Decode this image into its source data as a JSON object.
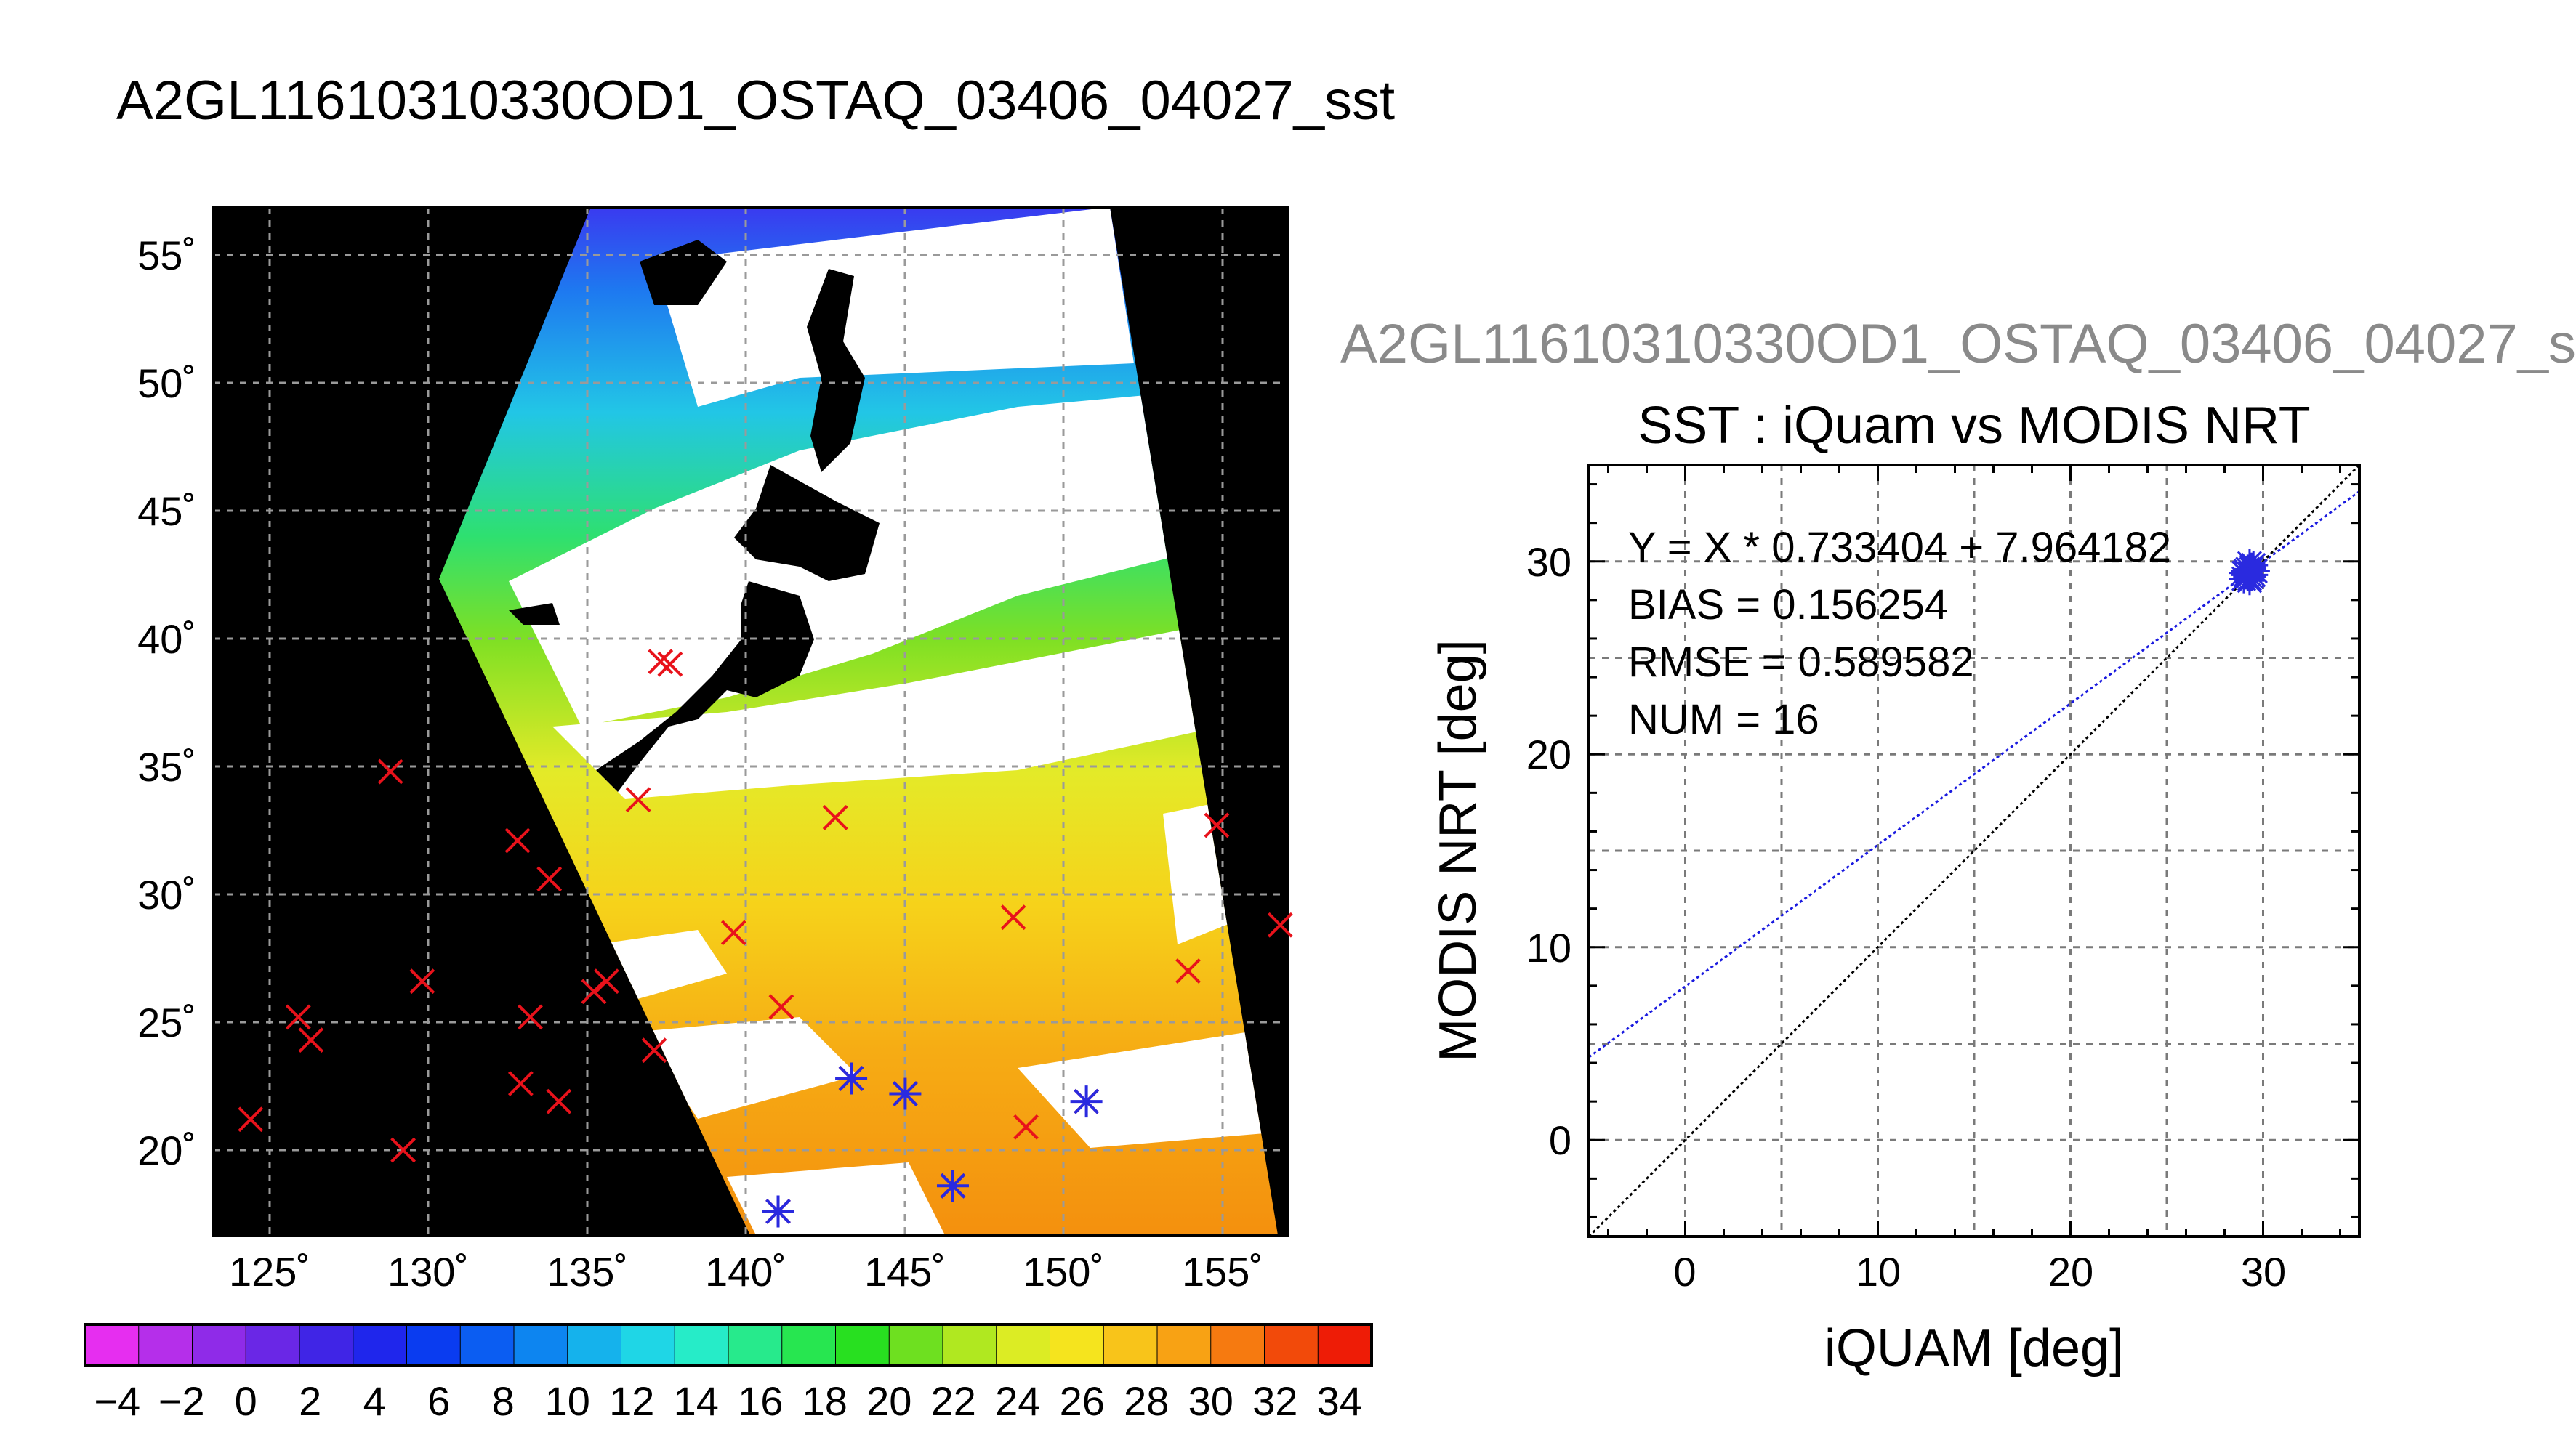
{
  "main_title": "A2GL11610310330OD1_OSTAQ_03406_04027_sst",
  "side_title": "A2GL11610310330OD1_OSTAQ_03406_04027_s",
  "map": {
    "lat_ticks": [
      "55˚",
      "50˚",
      "45˚",
      "40˚",
      "35˚",
      "30˚",
      "25˚",
      "20˚"
    ],
    "lon_ticks": [
      "125˚",
      "130˚",
      "135˚",
      "140˚",
      "145˚",
      "150˚",
      "155˚"
    ],
    "land_color": "#000000",
    "marker_color": "#e8121b",
    "match_color": "#2a2adf"
  },
  "colorbar": {
    "tick_labels": [
      "−4",
      "−2",
      "0",
      "2",
      "4",
      "6",
      "8",
      "10",
      "12",
      "14",
      "16",
      "18",
      "20",
      "22",
      "24",
      "26",
      "28",
      "30",
      "32",
      "34"
    ],
    "colors": [
      "#e62ef0",
      "#b52fea",
      "#8f2be8",
      "#6a27e6",
      "#4025e6",
      "#1f26ec",
      "#0a3cf0",
      "#0b5df2",
      "#0d85f0",
      "#15b2ec",
      "#1fd6e6",
      "#26ecc8",
      "#27ea8c",
      "#27e650",
      "#28e020",
      "#6ee020",
      "#b0e820",
      "#dcec24",
      "#f5e41e",
      "#f8c41a",
      "#f8a214",
      "#f67a10",
      "#f24a0a",
      "#ee1c06"
    ]
  },
  "scatter": {
    "title": "SST : iQuam vs MODIS NRT",
    "xlabel": "iQUAM [deg]",
    "ylabel": "MODIS NRT [deg]",
    "xlim": [
      -5,
      35
    ],
    "ylim": [
      -5,
      35
    ],
    "x_ticks": [
      "0",
      "10",
      "20",
      "30"
    ],
    "y_ticks": [
      "0",
      "10",
      "20",
      "30"
    ],
    "stats": {
      "eq": "Y = X * 0.733404 + 7.964182",
      "bias": "BIAS = 0.156254",
      "rmse": "RMSE = 0.589582",
      "num": "NUM = 16"
    },
    "fit_color": "#1a1adf",
    "identity_color": "#000000"
  },
  "chart_data": [
    {
      "type": "scatter",
      "title": "A2GL11610310330OD1_OSTAQ_03406_04027_sst",
      "xlabel": "",
      "ylabel": "",
      "xlim": [
        123,
        157
      ],
      "ylim": [
        16,
        57
      ],
      "grid": true,
      "series": [
        {
          "name": "",
          "marker": "x",
          "color": "#e8121b",
          "x": [
            137.3,
            137.6,
            128.8,
            136.6,
            142.8,
            154.8,
            132.8,
            133.8,
            129.8,
            139.6,
            156.8,
            135.2,
            148.4,
            135.6,
            125.9,
            126.3,
            133.2,
            141.1,
            153.9,
            137.1,
            132.9,
            134.1,
            124.4,
            148.8,
            129.2,
            143.3,
            145.0,
            150.7,
            141.0,
            146.5
          ],
          "y": [
            39.1,
            39.0,
            34.8,
            33.7,
            33.0,
            32.7,
            32.1,
            30.6,
            26.6,
            28.5,
            28.8,
            26.2,
            29.1,
            26.6,
            25.2,
            24.3,
            25.2,
            25.6,
            27.0,
            23.9,
            22.6,
            21.9,
            21.2,
            20.9,
            20.0,
            22.8,
            22.2,
            21.9,
            17.6,
            18.6
          ]
        },
        {
          "name": "",
          "marker": "asterisk",
          "color": "#2a2adf",
          "x": [
            143.3,
            145.0,
            150.7,
            141.0,
            146.5
          ],
          "y": [
            22.8,
            22.2,
            21.9,
            17.6,
            18.6
          ]
        }
      ]
    },
    {
      "type": "scatter",
      "title": "SST : iQuam vs MODIS NRT",
      "xlabel": "iQUAM [deg]",
      "ylabel": "MODIS NRT [deg]",
      "xlim": [
        -5,
        35
      ],
      "ylim": [
        -5,
        35
      ],
      "grid": true,
      "series": [
        {
          "name": "",
          "marker": "asterisk",
          "color": "#2a2adf",
          "x": [
            29.0,
            29.2,
            29.4,
            29.5,
            29.1,
            29.3,
            29.6,
            29.2,
            29.0,
            29.4,
            29.3,
            29.5,
            29.1,
            29.2,
            29.4,
            29.3
          ],
          "y": [
            29.1,
            29.4,
            29.6,
            29.8,
            29.3,
            29.0,
            29.5,
            29.2,
            29.4,
            29.7,
            29.9,
            29.3,
            29.5,
            29.6,
            29.2,
            29.1
          ]
        },
        {
          "name": "",
          "type": "line",
          "slope": 0.733404,
          "intercept": 7.964182,
          "color": "#1a1adf"
        },
        {
          "name": "",
          "type": "line",
          "slope": 1,
          "intercept": 0,
          "color": "#000000"
        }
      ]
    }
  ]
}
